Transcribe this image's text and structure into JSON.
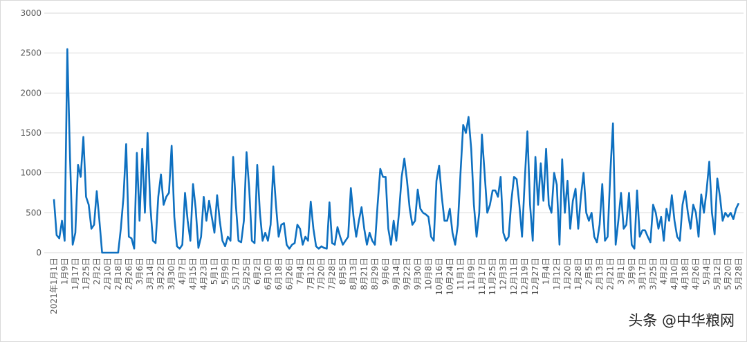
{
  "chart_data": {
    "type": "line",
    "color": "#0e70c0",
    "grid": true,
    "ylim": [
      0,
      3000
    ],
    "yticks": [
      0,
      500,
      1000,
      1500,
      2000,
      2500,
      3000
    ],
    "watermark": "头条 @中华粮网",
    "categories": [
      "2021年1月1日",
      null,
      null,
      null,
      "1月9日",
      null,
      null,
      null,
      "1月17日",
      null,
      null,
      null,
      "1月25日",
      null,
      null,
      null,
      "2月2日",
      null,
      null,
      null,
      "2月10日",
      null,
      null,
      null,
      "2月18日",
      null,
      null,
      null,
      "2月26日",
      null,
      null,
      null,
      "3月6日",
      null,
      null,
      null,
      "3月14日",
      null,
      null,
      null,
      "3月22日",
      null,
      null,
      null,
      "3月30日",
      null,
      null,
      null,
      "4月7日",
      null,
      null,
      null,
      "4月15日",
      null,
      null,
      null,
      "4月23日",
      null,
      null,
      null,
      "5月1日",
      null,
      null,
      null,
      "5月9日",
      null,
      null,
      null,
      "5月17日",
      null,
      null,
      null,
      "5月25日",
      null,
      null,
      null,
      "6月2日",
      null,
      null,
      null,
      "6月10日",
      null,
      null,
      null,
      "6月18日",
      null,
      null,
      null,
      "6月26日",
      null,
      null,
      null,
      "7月4日",
      null,
      null,
      null,
      "7月12日",
      null,
      null,
      null,
      "7月20日",
      null,
      null,
      null,
      "7月28日",
      null,
      null,
      null,
      "8月5日",
      null,
      null,
      null,
      "8月13日",
      null,
      null,
      null,
      "8月21日",
      null,
      null,
      null,
      "8月29日",
      null,
      null,
      null,
      "9月6日",
      null,
      null,
      null,
      "9月14日",
      null,
      null,
      null,
      "9月22日",
      null,
      null,
      null,
      "9月30日",
      null,
      null,
      null,
      "10月8日",
      null,
      null,
      null,
      "10月16日",
      null,
      null,
      null,
      "10月24日",
      null,
      null,
      null,
      "11月1日",
      null,
      null,
      null,
      "11月9日",
      null,
      null,
      null,
      "11月17日",
      null,
      null,
      null,
      "11月25日",
      null,
      null,
      null,
      "12月3日",
      null,
      null,
      null,
      "12月11日",
      null,
      null,
      null,
      "12月19日",
      null,
      null,
      null,
      "12月27日",
      null,
      null,
      null,
      "1月4日",
      null,
      null,
      null,
      "1月12日",
      null,
      null,
      null,
      "1月20日",
      null,
      null,
      null,
      "1月28日",
      null,
      null,
      null,
      "2月5日",
      null,
      null,
      null,
      "2月13日",
      null,
      null,
      null,
      "2月21日",
      null,
      null,
      null,
      "3月1日",
      null,
      null,
      null,
      "3月9日",
      null,
      null,
      null,
      "3月17日",
      null,
      null,
      null,
      "3月25日",
      null,
      null,
      null,
      "4月2日",
      null,
      null,
      null,
      "4月10日",
      null,
      null,
      null,
      "4月18日",
      null,
      null,
      null,
      "4月26日",
      null,
      null,
      null,
      "5月4日",
      null,
      null,
      null,
      "5月12日",
      null,
      null,
      null,
      "5月20日",
      null,
      null,
      null,
      "5月28日"
    ],
    "values": [
      670,
      220,
      180,
      400,
      150,
      2550,
      1200,
      100,
      250,
      1100,
      950,
      1450,
      700,
      600,
      300,
      350,
      770,
      400,
      0,
      0,
      0,
      0,
      0,
      0,
      0,
      300,
      700,
      1360,
      200,
      180,
      50,
      1250,
      400,
      1300,
      500,
      1500,
      600,
      150,
      120,
      700,
      980,
      600,
      700,
      750,
      1340,
      450,
      80,
      50,
      100,
      750,
      400,
      150,
      860,
      550,
      60,
      200,
      700,
      400,
      650,
      450,
      250,
      720,
      400,
      150,
      80,
      200,
      150,
      1200,
      600,
      150,
      130,
      400,
      1260,
      800,
      150,
      120,
      1100,
      500,
      150,
      250,
      150,
      350,
      1080,
      600,
      200,
      350,
      370,
      100,
      50,
      100,
      120,
      350,
      300,
      100,
      200,
      150,
      640,
      300,
      80,
      50,
      80,
      60,
      50,
      630,
      120,
      100,
      320,
      200,
      100,
      150,
      200,
      810,
      450,
      200,
      400,
      570,
      300,
      100,
      250,
      150,
      100,
      600,
      1050,
      950,
      950,
      300,
      100,
      400,
      150,
      500,
      950,
      1180,
      900,
      550,
      350,
      400,
      790,
      550,
      500,
      480,
      450,
      200,
      150,
      900,
      1090,
      700,
      400,
      400,
      550,
      250,
      100,
      350,
      1000,
      1600,
      1500,
      1700,
      1300,
      600,
      200,
      500,
      1480,
      1000,
      500,
      600,
      780,
      780,
      700,
      950,
      250,
      150,
      200,
      650,
      950,
      920,
      600,
      200,
      900,
      1520,
      600,
      150,
      1200,
      600,
      1120,
      650,
      1300,
      600,
      500,
      1000,
      850,
      100,
      1170,
      500,
      900,
      300,
      650,
      800,
      300,
      700,
      1000,
      500,
      400,
      500,
      200,
      130,
      350,
      860,
      150,
      200,
      1000,
      1620,
      100,
      400,
      750,
      300,
      350,
      750,
      100,
      50,
      780,
      200,
      280,
      280,
      200,
      130,
      600,
      500,
      300,
      450,
      150,
      550,
      400,
      720,
      400,
      200,
      150,
      600,
      770,
      500,
      300,
      600,
      500,
      200,
      730,
      500,
      780,
      1140,
      500,
      230,
      930,
      700,
      400,
      500,
      450,
      500,
      420,
      550,
      620
    ]
  }
}
